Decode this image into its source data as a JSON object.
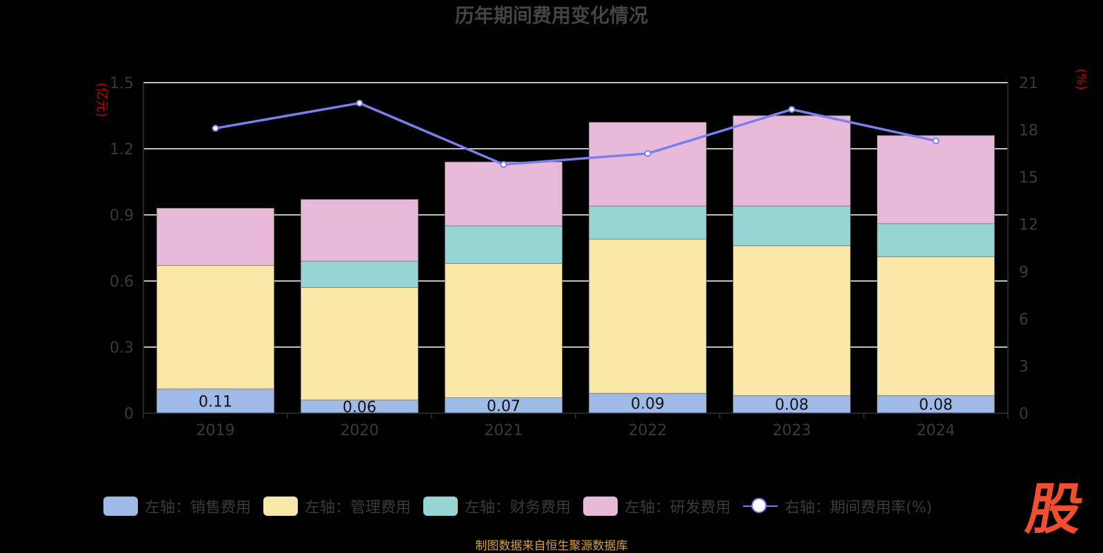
{
  "chart_data": {
    "type": "bar",
    "title": "历年期间费用变化情况",
    "left_unit": "(亿元)",
    "right_unit": "(%)",
    "categories": [
      "2019",
      "2020",
      "2021",
      "2022",
      "2023",
      "2024"
    ],
    "left_axis": {
      "min": 0,
      "max": 1.5,
      "ticks": [
        "0",
        "0.3",
        "0.6",
        "0.9",
        "1.2",
        "1.5"
      ],
      "tick_values": [
        0,
        0.3,
        0.6,
        0.9,
        1.2,
        1.5
      ]
    },
    "right_axis": {
      "min": 0,
      "max": 21,
      "ticks": [
        "0",
        "3",
        "6",
        "9",
        "12",
        "15",
        "18",
        "21"
      ],
      "tick_values": [
        0,
        3,
        6,
        9,
        12,
        15,
        18,
        21
      ]
    },
    "stacked": true,
    "series": [
      {
        "name": "左轴：销售费用",
        "color": "#9fbae6",
        "values": [
          0.11,
          0.06,
          0.07,
          0.09,
          0.08,
          0.08
        ],
        "labels": [
          "0.11",
          "0.06",
          "0.07",
          "0.09",
          "0.08",
          "0.08"
        ]
      },
      {
        "name": "左轴：管理费用",
        "color": "#f9e8a8",
        "values": [
          0.56,
          0.51,
          0.61,
          0.7,
          0.68,
          0.63
        ]
      },
      {
        "name": "左轴：财务费用",
        "color": "#97d4d4",
        "values": [
          0.0,
          0.12,
          0.17,
          0.15,
          0.18,
          0.15
        ]
      },
      {
        "name": "左轴：研发费用",
        "color": "#e8b9d9",
        "values": [
          0.26,
          0.28,
          0.29,
          0.38,
          0.41,
          0.4
        ]
      }
    ],
    "line_series": {
      "name": "右轴：期间费用率(%)",
      "color": "#7b7ff0",
      "values": [
        18.1,
        19.7,
        15.8,
        16.5,
        19.3,
        17.3
      ]
    },
    "grid": true,
    "legend_position": "bottom"
  },
  "source_text": "制图数据来自恒生聚源数据库",
  "logo_text": "股"
}
